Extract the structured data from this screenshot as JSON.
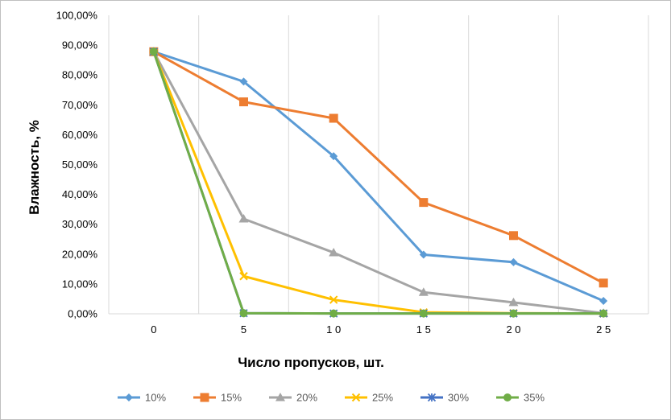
{
  "chart_data": {
    "type": "line",
    "xlabel": "Число пропусков, шт.",
    "ylabel": "Влажность, %",
    "x": [
      0,
      5,
      10,
      15,
      20,
      25
    ],
    "x_tick_labels": [
      "0",
      "5",
      "1 0",
      "1 5",
      "2 0",
      "2 5"
    ],
    "y_tick_labels": [
      "0,00%",
      "10,00%",
      "20,00%",
      "30,00%",
      "40,00%",
      "50,00%",
      "60,00%",
      "70,00%",
      "80,00%",
      "90,00%",
      "100,00%"
    ],
    "ylim": [
      0,
      100
    ],
    "grid": "vertical",
    "legend": "bottom",
    "series": [
      {
        "name": "10%",
        "color": "#5B9BD5",
        "marker": "diamond",
        "values": [
          87.8,
          77.8,
          52.8,
          19.8,
          17.3,
          4.3
        ]
      },
      {
        "name": "15%",
        "color": "#ED7D31",
        "marker": "square",
        "values": [
          87.8,
          71.0,
          65.5,
          37.3,
          26.2,
          10.3
        ]
      },
      {
        "name": "20%",
        "color": "#A5A5A5",
        "marker": "triangle",
        "values": [
          87.8,
          31.8,
          20.5,
          7.2,
          3.8,
          0.2
        ]
      },
      {
        "name": "25%",
        "color": "#FFC000",
        "marker": "x",
        "values": [
          87.8,
          12.6,
          4.7,
          0.5,
          0.2,
          0.1
        ]
      },
      {
        "name": "30%",
        "color": "#4472C4",
        "marker": "star",
        "values": [
          87.8,
          0.2,
          0.1,
          0.1,
          0.1,
          0.1
        ]
      },
      {
        "name": "35%",
        "color": "#70AD47",
        "marker": "circle",
        "values": [
          87.8,
          0.2,
          0.1,
          0.1,
          0.1,
          0.1
        ]
      }
    ]
  }
}
